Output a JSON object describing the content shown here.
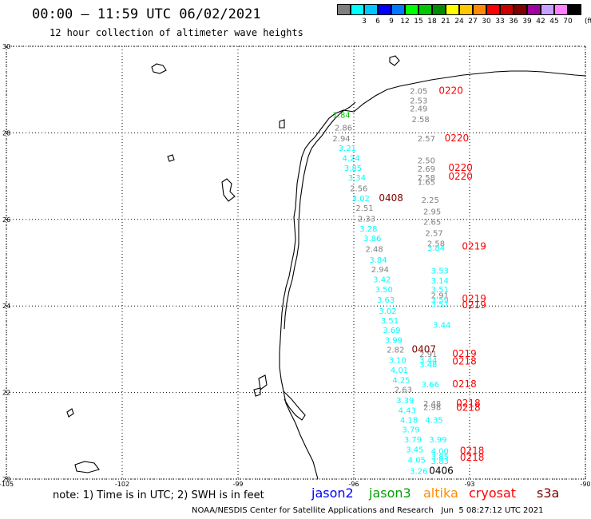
{
  "header": {
    "title": "00:00 – 11:59 UTC 06/02/2021",
    "subtitle": "12 hour collection of altimeter wave heights"
  },
  "colorbar": {
    "unit_label": "(ft)",
    "swatches": [
      {
        "color": "#808080",
        "label": ""
      },
      {
        "color": "#00ffff",
        "label": "3"
      },
      {
        "color": "#00c8ff",
        "label": "6"
      },
      {
        "color": "#0000ff",
        "label": "9"
      },
      {
        "color": "#0078ff",
        "label": "12"
      },
      {
        "color": "#00ff00",
        "label": "15"
      },
      {
        "color": "#00c800",
        "label": "18"
      },
      {
        "color": "#008c00",
        "label": "21"
      },
      {
        "color": "#ffff00",
        "label": "24"
      },
      {
        "color": "#ffc800",
        "label": "27"
      },
      {
        "color": "#ff8c00",
        "label": "30"
      },
      {
        "color": "#ff0000",
        "label": "33"
      },
      {
        "color": "#c80000",
        "label": "36"
      },
      {
        "color": "#800000",
        "label": "39"
      },
      {
        "color": "#a000a0",
        "label": "42"
      },
      {
        "color": "#c8a0ff",
        "label": "45"
      },
      {
        "color": "#ff80ff",
        "label": "70"
      },
      {
        "color": "#000000",
        "label": ""
      }
    ]
  },
  "axes": {
    "lat_labels": [
      "30",
      "28",
      "26",
      "24",
      "22",
      "20"
    ],
    "lon_labels": [
      "-105",
      "-102",
      "-99",
      "-96",
      "-93",
      "-90"
    ]
  },
  "observations": [
    {
      "t": "2.05",
      "c": "#808080",
      "lon": -94.55,
      "lat": 28.9
    },
    {
      "t": "0220",
      "c": "#ff0000",
      "lon": -93.8,
      "lat": 28.9
    },
    {
      "t": "2.53",
      "c": "#808080",
      "lon": -94.55,
      "lat": 28.68
    },
    {
      "t": "2.49",
      "c": "#808080",
      "lon": -94.55,
      "lat": 28.5
    },
    {
      "t": "2.58",
      "c": "#808080",
      "lon": -94.5,
      "lat": 28.25
    },
    {
      "t": "1.84",
      "c": "#00c800",
      "lon": -96.55,
      "lat": 28.35
    },
    {
      "t": "2.86",
      "c": "#808080",
      "lon": -96.5,
      "lat": 28.05
    },
    {
      "t": "2.94",
      "c": "#808080",
      "lon": -96.55,
      "lat": 27.8
    },
    {
      "t": "2.57",
      "c": "#808080",
      "lon": -94.35,
      "lat": 27.8
    },
    {
      "t": "0220",
      "c": "#ff0000",
      "lon": -93.65,
      "lat": 27.8
    },
    {
      "t": "3.21",
      "c": "#00ffff",
      "lon": -96.4,
      "lat": 27.58
    },
    {
      "t": "4.24",
      "c": "#00ffff",
      "lon": -96.3,
      "lat": 27.35
    },
    {
      "t": "2.50",
      "c": "#808080",
      "lon": -94.35,
      "lat": 27.3
    },
    {
      "t": "3.85",
      "c": "#00ffff",
      "lon": -96.25,
      "lat": 27.12
    },
    {
      "t": "2.69",
      "c": "#808080",
      "lon": -94.35,
      "lat": 27.1
    },
    {
      "t": "0220",
      "c": "#ff0000",
      "lon": -93.55,
      "lat": 27.12
    },
    {
      "t": "3.34",
      "c": "#00ffff",
      "lon": -96.15,
      "lat": 26.9
    },
    {
      "t": "2.58",
      "c": "#808080",
      "lon": -94.35,
      "lat": 26.9
    },
    {
      "t": "0220",
      "c": "#ff0000",
      "lon": -93.55,
      "lat": 26.92
    },
    {
      "t": "1.65",
      "c": "#808080",
      "lon": -94.35,
      "lat": 26.8
    },
    {
      "t": "2.56",
      "c": "#808080",
      "lon": -96.1,
      "lat": 26.65
    },
    {
      "t": "3.02",
      "c": "#00ffff",
      "lon": -96.05,
      "lat": 26.42
    },
    {
      "t": "0408",
      "c": "#800000",
      "lon": -95.35,
      "lat": 26.42
    },
    {
      "t": "2.25",
      "c": "#808080",
      "lon": -94.25,
      "lat": 26.38
    },
    {
      "t": "2.51",
      "c": "#808080",
      "lon": -95.95,
      "lat": 26.2
    },
    {
      "t": "2.95",
      "c": "#808080",
      "lon": -94.2,
      "lat": 26.12
    },
    {
      "t": "2.33",
      "c": "#808080",
      "lon": -95.9,
      "lat": 25.95
    },
    {
      "t": "2.65",
      "c": "#808080",
      "lon": -94.2,
      "lat": 25.88
    },
    {
      "t": "3.28",
      "c": "#00ffff",
      "lon": -95.85,
      "lat": 25.72
    },
    {
      "t": "2.57",
      "c": "#808080",
      "lon": -94.15,
      "lat": 25.62
    },
    {
      "t": "3.86",
      "c": "#00ffff",
      "lon": -95.75,
      "lat": 25.5
    },
    {
      "t": "2.58",
      "c": "#808080",
      "lon": -94.1,
      "lat": 25.38
    },
    {
      "t": "3.84",
      "c": "#00ffff",
      "lon": -94.1,
      "lat": 25.28
    },
    {
      "t": "0219",
      "c": "#ff0000",
      "lon": -93.2,
      "lat": 25.3
    },
    {
      "t": "2.48",
      "c": "#808080",
      "lon": -95.7,
      "lat": 25.25
    },
    {
      "t": "3.84",
      "c": "#00ffff",
      "lon": -95.6,
      "lat": 25.0
    },
    {
      "t": "2.94",
      "c": "#808080",
      "lon": -95.55,
      "lat": 24.78
    },
    {
      "t": "3.53",
      "c": "#00ffff",
      "lon": -94.0,
      "lat": 24.75
    },
    {
      "t": "3.42",
      "c": "#00ffff",
      "lon": -95.5,
      "lat": 24.55
    },
    {
      "t": "3.14",
      "c": "#00ffff",
      "lon": -94.0,
      "lat": 24.52
    },
    {
      "t": "3.50",
      "c": "#00ffff",
      "lon": -95.45,
      "lat": 24.32
    },
    {
      "t": "3.51",
      "c": "#00ffff",
      "lon": -94.0,
      "lat": 24.32
    },
    {
      "t": "2.91",
      "c": "#808080",
      "lon": -94.0,
      "lat": 24.18
    },
    {
      "t": "3.63",
      "c": "#00ffff",
      "lon": -95.4,
      "lat": 24.08
    },
    {
      "t": "3.59",
      "c": "#00ffff",
      "lon": -94.0,
      "lat": 24.08
    },
    {
      "t": "0219",
      "c": "#ff0000",
      "lon": -93.2,
      "lat": 24.1
    },
    {
      "t": "3.57",
      "c": "#00ffff",
      "lon": -94.0,
      "lat": 23.98
    },
    {
      "t": "0219",
      "c": "#ff0000",
      "lon": -93.2,
      "lat": 23.95
    },
    {
      "t": "3.02",
      "c": "#00ffff",
      "lon": -95.35,
      "lat": 23.82
    },
    {
      "t": "3.51",
      "c": "#00ffff",
      "lon": -95.3,
      "lat": 23.6
    },
    {
      "t": "3.44",
      "c": "#00ffff",
      "lon": -93.95,
      "lat": 23.5
    },
    {
      "t": "3.69",
      "c": "#00ffff",
      "lon": -95.25,
      "lat": 23.38
    },
    {
      "t": "3.99",
      "c": "#00ffff",
      "lon": -95.2,
      "lat": 23.15
    },
    {
      "t": "2.82",
      "c": "#808080",
      "lon": -95.15,
      "lat": 22.92
    },
    {
      "t": "0407",
      "c": "#800000",
      "lon": -94.5,
      "lat": 22.92
    },
    {
      "t": "2.91",
      "c": "#808080",
      "lon": -94.3,
      "lat": 22.82
    },
    {
      "t": "0219",
      "c": "#ff0000",
      "lon": -93.45,
      "lat": 22.82
    },
    {
      "t": "3.10",
      "c": "#00ffff",
      "lon": -95.1,
      "lat": 22.68
    },
    {
      "t": "3.44",
      "c": "#00ffff",
      "lon": -94.3,
      "lat": 22.68
    },
    {
      "t": "0218",
      "c": "#ff0000",
      "lon": -93.45,
      "lat": 22.65
    },
    {
      "t": "3.48",
      "c": "#00ffff",
      "lon": -94.3,
      "lat": 22.58
    },
    {
      "t": "4.01",
      "c": "#00ffff",
      "lon": -95.05,
      "lat": 22.45
    },
    {
      "t": "4.25",
      "c": "#00ffff",
      "lon": -95.0,
      "lat": 22.22
    },
    {
      "t": "3.66",
      "c": "#00ffff",
      "lon": -94.25,
      "lat": 22.12
    },
    {
      "t": "0218",
      "c": "#ff0000",
      "lon": -93.45,
      "lat": 22.12
    },
    {
      "t": "2.63",
      "c": "#808080",
      "lon": -94.95,
      "lat": 22.0
    },
    {
      "t": "3.39",
      "c": "#00ffff",
      "lon": -94.9,
      "lat": 21.75
    },
    {
      "t": "2.48",
      "c": "#808080",
      "lon": -94.2,
      "lat": 21.68
    },
    {
      "t": "0218",
      "c": "#ff0000",
      "lon": -93.35,
      "lat": 21.68
    },
    {
      "t": "2.98",
      "c": "#808080",
      "lon": -94.2,
      "lat": 21.6
    },
    {
      "t": "0218",
      "c": "#ff0000",
      "lon": -93.35,
      "lat": 21.58
    },
    {
      "t": "4.43",
      "c": "#00ffff",
      "lon": -94.85,
      "lat": 21.52
    },
    {
      "t": "4.18",
      "c": "#00ffff",
      "lon": -94.8,
      "lat": 21.3
    },
    {
      "t": "4.35",
      "c": "#00ffff",
      "lon": -94.15,
      "lat": 21.3
    },
    {
      "t": "3.79",
      "c": "#00ffff",
      "lon": -94.75,
      "lat": 21.08
    },
    {
      "t": "3.79",
      "c": "#00ffff",
      "lon": -94.7,
      "lat": 20.85
    },
    {
      "t": "3.99",
      "c": "#00ffff",
      "lon": -94.05,
      "lat": 20.85
    },
    {
      "t": "3.45",
      "c": "#00ffff",
      "lon": -94.65,
      "lat": 20.62
    },
    {
      "t": "4.00",
      "c": "#00ffff",
      "lon": -94.0,
      "lat": 20.58
    },
    {
      "t": "0218",
      "c": "#ff0000",
      "lon": -93.25,
      "lat": 20.58
    },
    {
      "t": "3.85",
      "c": "#00ffff",
      "lon": -94.0,
      "lat": 20.45
    },
    {
      "t": "0218",
      "c": "#ff0000",
      "lon": -93.25,
      "lat": 20.42
    },
    {
      "t": "4.05",
      "c": "#00ffff",
      "lon": -94.6,
      "lat": 20.38
    },
    {
      "t": "3.83",
      "c": "#00ffff",
      "lon": -94.0,
      "lat": 20.35
    },
    {
      "t": "3.26",
      "c": "#00ffff",
      "lon": -94.55,
      "lat": 20.12
    },
    {
      "t": "0406",
      "c": "#000000",
      "lon": -94.05,
      "lat": 20.12
    }
  ],
  "footer": {
    "note": "note: 1) Time is in UTC; 2) SWH is in feet",
    "satellites": [
      {
        "name": "jason2",
        "color": "#0000ff"
      },
      {
        "name": "jason3",
        "color": "#00a000"
      },
      {
        "name": "altika",
        "color": "#ff8c00"
      },
      {
        "name": "cryosat",
        "color": "#ff0000"
      },
      {
        "name": "s3a",
        "color": "#800000"
      }
    ],
    "credit": "NOAA/NESDIS Center for Satellite Applications and Research   Jun  5 08:27:12 UTC 2021"
  }
}
